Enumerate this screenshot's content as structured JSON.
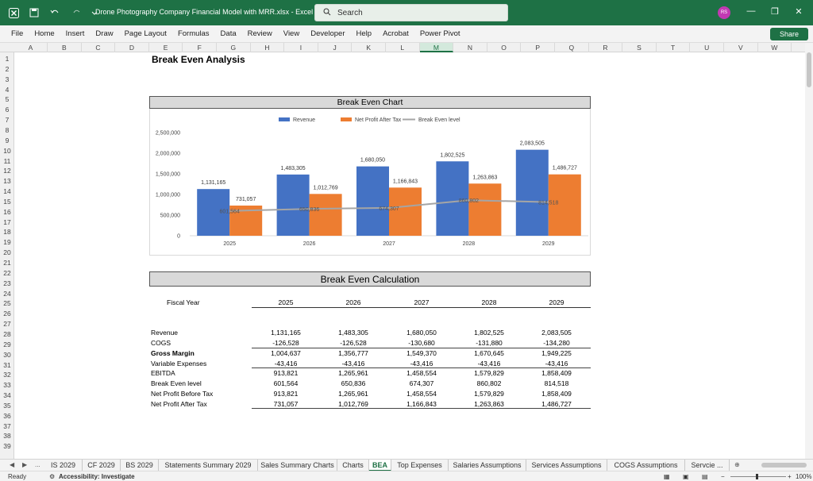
{
  "titlebar": {
    "doc_title": "Drone Photography Company Financial Model with MRR.xlsx  -  Excel",
    "search_placeholder": "Search",
    "avatar_initials": "RS"
  },
  "ribbon": {
    "items": [
      "File",
      "Home",
      "Insert",
      "Draw",
      "Page Layout",
      "Formulas",
      "Data",
      "Review",
      "View",
      "Developer",
      "Help",
      "Acrobat",
      "Power Pivot"
    ],
    "share_label": "Share"
  },
  "columns": [
    "A",
    "B",
    "C",
    "D",
    "E",
    "F",
    "G",
    "H",
    "I",
    "J",
    "K",
    "L",
    "M",
    "N",
    "O",
    "P",
    "Q",
    "R",
    "S",
    "T",
    "U",
    "V",
    "W"
  ],
  "selected_column": "M",
  "rows": [
    "1",
    "2",
    "3",
    "4",
    "5",
    "6",
    "7",
    "8",
    "9",
    "10",
    "11",
    "12",
    "13",
    "14",
    "15",
    "16",
    "17",
    "18",
    "19",
    "20",
    "21",
    "22",
    "23",
    "24",
    "25",
    "26",
    "27",
    "28",
    "29",
    "30",
    "31",
    "32",
    "33",
    "34",
    "35",
    "36",
    "37",
    "38",
    "39"
  ],
  "sheet": {
    "title": "Break Even Analysis",
    "chart_band": "Break Even Chart",
    "calc_band": "Break Even Calculation"
  },
  "chart_data": {
    "type": "bar",
    "categories": [
      "2025",
      "2026",
      "2027",
      "2028",
      "2029"
    ],
    "series": [
      {
        "name": "Revenue",
        "kind": "bar",
        "color": "#4472c4",
        "values": [
          1131165,
          1483305,
          1680050,
          1802525,
          2083505
        ],
        "labels": [
          "1,131,165",
          "1,483,305",
          "1,680,050",
          "1,802,525",
          "2,083,505"
        ]
      },
      {
        "name": "Net Profit After Tax",
        "kind": "bar",
        "color": "#ed7d31",
        "values": [
          731057,
          1012769,
          1166843,
          1263863,
          1486727
        ],
        "labels": [
          "731,057",
          "1,012,769",
          "1,166,843",
          "1,263,863",
          "1,486,727"
        ]
      },
      {
        "name": "Break Even level",
        "kind": "line",
        "color": "#a5a5a5",
        "values": [
          601564,
          650836,
          674307,
          860802,
          814518
        ],
        "labels": [
          "601,564",
          "650,836",
          "674,307",
          "860,802",
          "814,518"
        ]
      }
    ],
    "ylim": [
      0,
      2500000
    ],
    "yticks": [
      0,
      500000,
      1000000,
      1500000,
      2000000,
      2500000
    ],
    "ytick_labels": [
      "0",
      "500,000",
      "1,000,000",
      "1,500,000",
      "2,000,000",
      "2,500,000"
    ],
    "legend_position": "top-center",
    "grid": false
  },
  "table": {
    "header_label": "Fiscal Year",
    "years": [
      "2025",
      "2026",
      "2027",
      "2028",
      "2029"
    ],
    "rows": [
      {
        "label": "Revenue",
        "bold": false,
        "values": [
          "1,131,165",
          "1,483,305",
          "1,680,050",
          "1,802,525",
          "2,083,505"
        ]
      },
      {
        "label": "COGS",
        "bold": false,
        "values": [
          "-126,528",
          "-126,528",
          "-130,680",
          "-131,880",
          "-134,280"
        ]
      },
      {
        "label": "Gross Margin",
        "bold": true,
        "values": [
          "1,004,637",
          "1,356,777",
          "1,549,370",
          "1,670,645",
          "1,949,225"
        ]
      },
      {
        "label": "Variable Expenses",
        "bold": false,
        "values": [
          "-43,416",
          "-43,416",
          "-43,416",
          "-43,416",
          "-43,416"
        ]
      },
      {
        "label": "EBITDA",
        "bold": false,
        "values": [
          "913,821",
          "1,265,961",
          "1,458,554",
          "1,579,829",
          "1,858,409"
        ]
      },
      {
        "label": "Break Even level",
        "bold": false,
        "values": [
          "601,564",
          "650,836",
          "674,307",
          "860,802",
          "814,518"
        ]
      },
      {
        "label": "Net Profit Before Tax",
        "bold": false,
        "values": [
          "913,821",
          "1,265,961",
          "1,458,554",
          "1,579,829",
          "1,858,409"
        ]
      },
      {
        "label": "Net Profit After Tax",
        "bold": false,
        "values": [
          "731,057",
          "1,012,769",
          "1,166,843",
          "1,263,863",
          "1,486,727"
        ]
      }
    ]
  },
  "tabs": {
    "items": [
      "IS 2029",
      "CF 2029",
      "BS 2029",
      "Statements Summary 2029",
      "Sales Summary Charts",
      "Charts",
      "BEA",
      "Top Expenses",
      "Salaries Assumptions",
      "Services Assumptions",
      "COGS Assumptions",
      "Servcie ..."
    ],
    "active": "BEA",
    "more": "..."
  },
  "status": {
    "ready": "Ready",
    "accessibility": "Accessibility: Investigate",
    "zoom": "100%"
  }
}
